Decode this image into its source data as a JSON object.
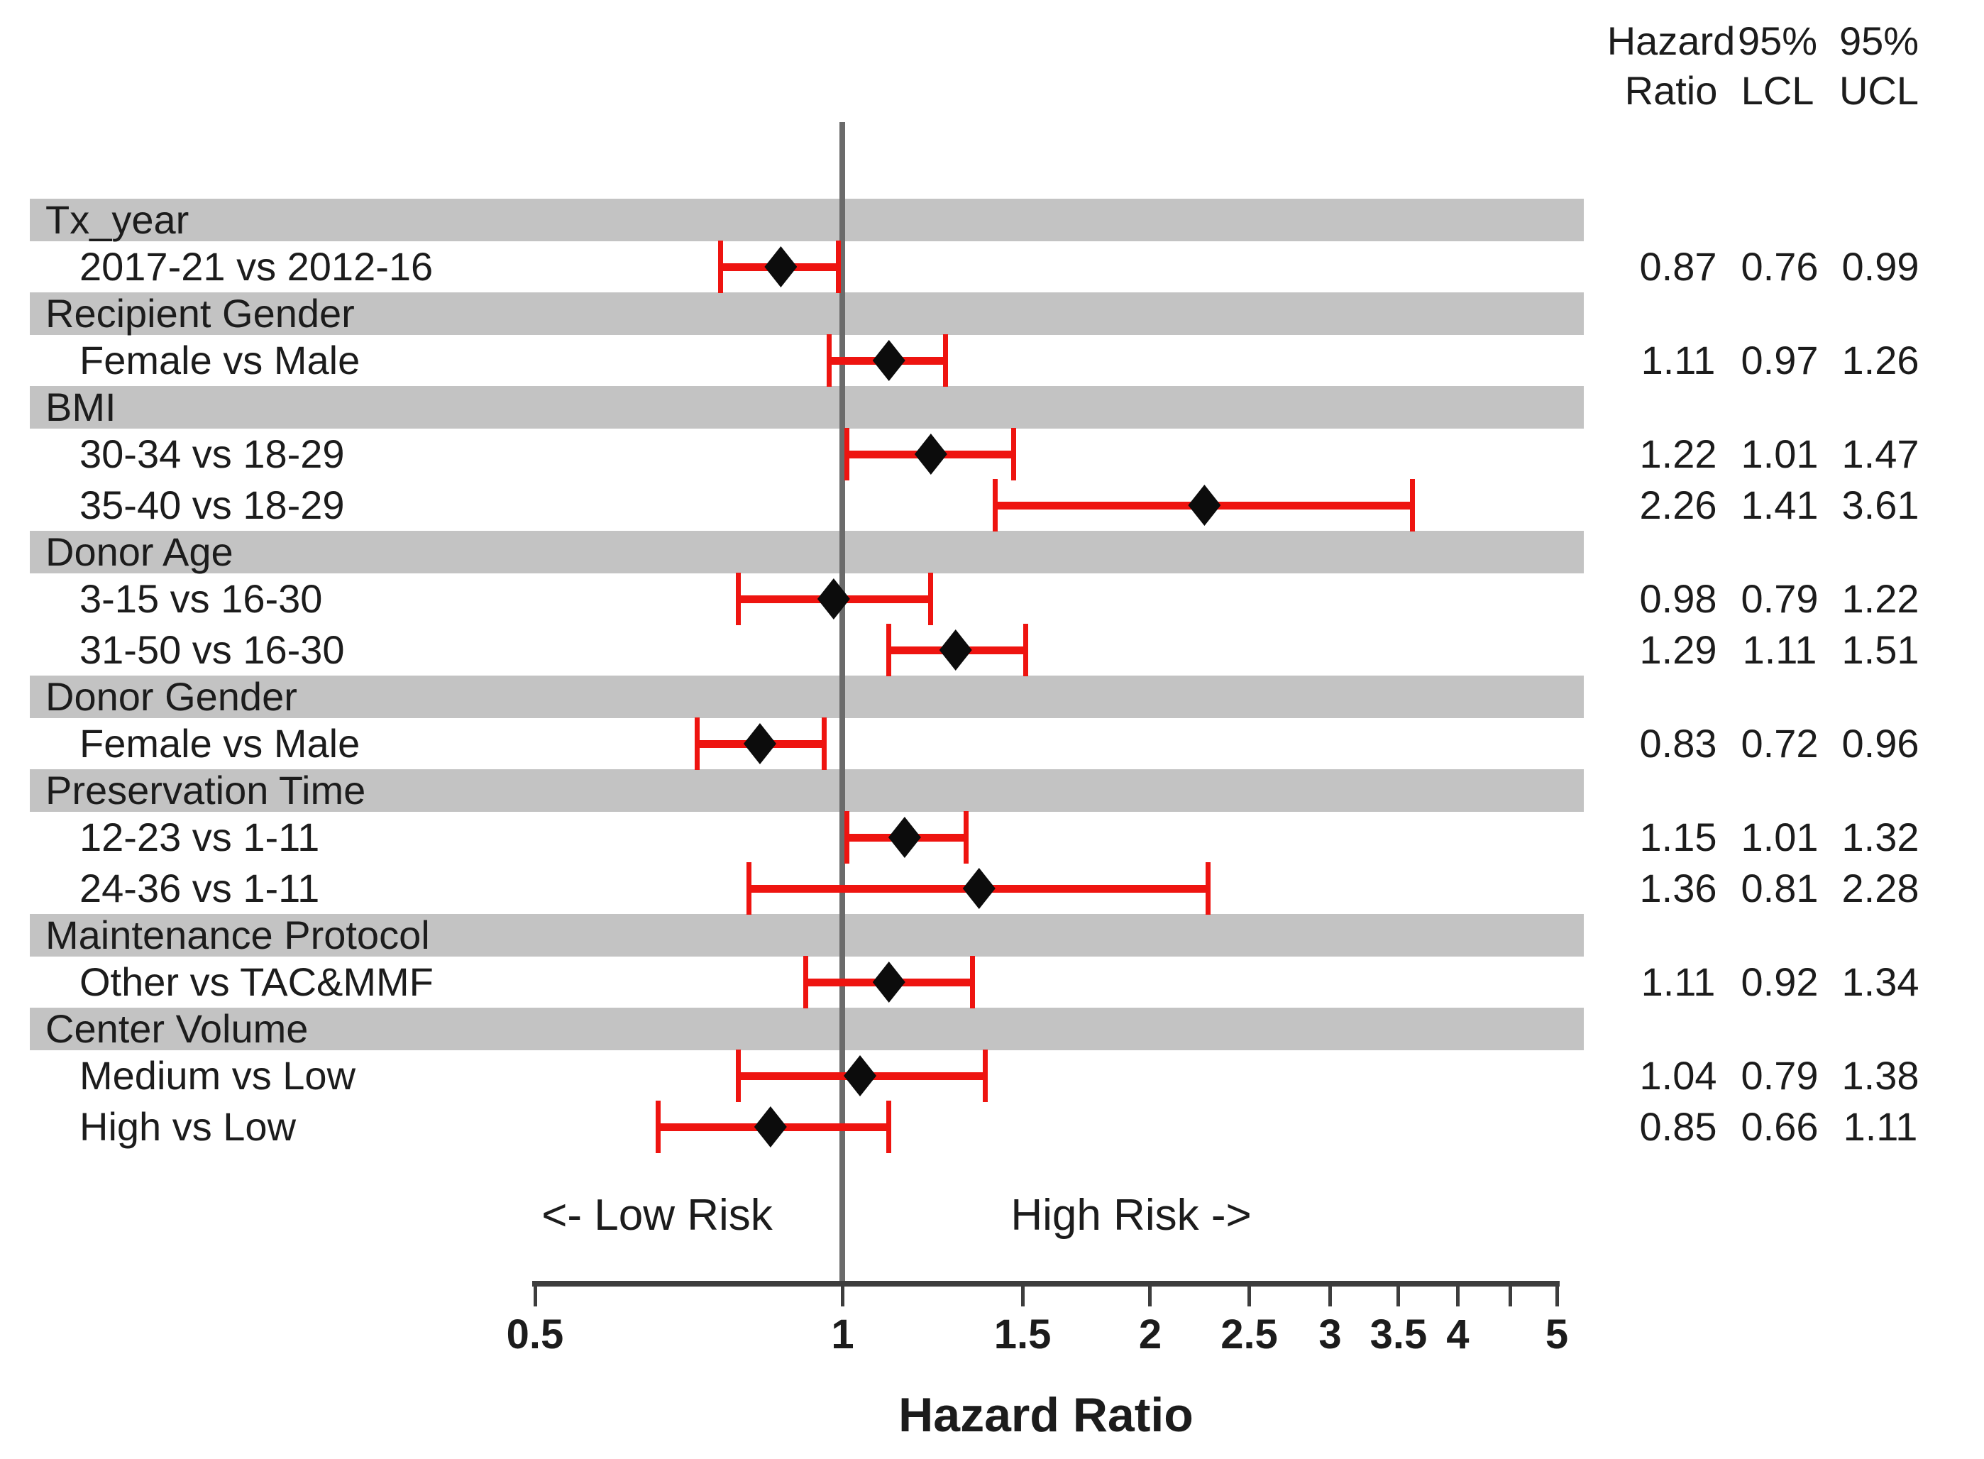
{
  "figure": {
    "value_columns_header": {
      "col1": {
        "line1": "Hazard",
        "line2": "Ratio"
      },
      "col2": {
        "line1": "95%",
        "line2": "LCL"
      },
      "col3": {
        "line1": "95%",
        "line2": "UCL"
      }
    },
    "annotations": {
      "low_risk": "<- Low Risk",
      "high_risk": "High Risk ->"
    },
    "xlabel": "Hazard Ratio"
  },
  "colors": {
    "category_band": "#c3c3c3",
    "error_bar": "#ee1410",
    "marker": "#0c0c0c",
    "reference_line": "#6b6b6b",
    "axis": "#3d3d3d",
    "text": "#1c1c1c"
  },
  "chart_data": {
    "type": "forest",
    "title": "",
    "xlabel": "Hazard Ratio",
    "ylabel": "",
    "x_scale": "log",
    "xlim": [
      0.5,
      5
    ],
    "reference_line": 1,
    "grid": false,
    "legend": "none",
    "columns": [
      "Hazard Ratio",
      "95% LCL",
      "95% UCL"
    ],
    "x_ticks": [
      {
        "value": 0.5,
        "label": "0.5"
      },
      {
        "value": 1,
        "label": "1"
      },
      {
        "value": 1.5,
        "label": "1.5"
      },
      {
        "value": 2,
        "label": "2"
      },
      {
        "value": 2.5,
        "label": "2.5"
      },
      {
        "value": 3,
        "label": "3"
      },
      {
        "value": 3.5,
        "label": "3.5"
      },
      {
        "value": 4,
        "label": "4"
      },
      {
        "value": 4.5,
        "label": ""
      },
      {
        "value": 5,
        "label": "5"
      }
    ],
    "rows": [
      {
        "type": "category",
        "label": "Tx_year"
      },
      {
        "type": "item",
        "label": "2017-21 vs 2012-16",
        "hr": 0.87,
        "lcl": 0.76,
        "ucl": 0.99
      },
      {
        "type": "category",
        "label": "Recipient Gender"
      },
      {
        "type": "item",
        "label": "Female vs Male",
        "hr": 1.11,
        "lcl": 0.97,
        "ucl": 1.26
      },
      {
        "type": "category",
        "label": "BMI"
      },
      {
        "type": "item",
        "label": "30-34 vs 18-29",
        "hr": 1.22,
        "lcl": 1.01,
        "ucl": 1.47
      },
      {
        "type": "item",
        "label": "35-40 vs 18-29",
        "hr": 2.26,
        "lcl": 1.41,
        "ucl": 3.61
      },
      {
        "type": "category",
        "label": "Donor Age"
      },
      {
        "type": "item",
        "label": "3-15 vs 16-30",
        "hr": 0.98,
        "lcl": 0.79,
        "ucl": 1.22
      },
      {
        "type": "item",
        "label": "31-50 vs 16-30",
        "hr": 1.29,
        "lcl": 1.11,
        "ucl": 1.51
      },
      {
        "type": "category",
        "label": "Donor Gender"
      },
      {
        "type": "item",
        "label": "Female vs Male",
        "hr": 0.83,
        "lcl": 0.72,
        "ucl": 0.96
      },
      {
        "type": "category",
        "label": "Preservation Time"
      },
      {
        "type": "item",
        "label": "12-23 vs 1-11",
        "hr": 1.15,
        "lcl": 1.01,
        "ucl": 1.32
      },
      {
        "type": "item",
        "label": "24-36 vs 1-11",
        "hr": 1.36,
        "lcl": 0.81,
        "ucl": 2.28
      },
      {
        "type": "category",
        "label": "Maintenance Protocol"
      },
      {
        "type": "item",
        "label": "Other vs TAC&MMF",
        "hr": 1.11,
        "lcl": 0.92,
        "ucl": 1.34
      },
      {
        "type": "category",
        "label": "Center Volume"
      },
      {
        "type": "item",
        "label": "Medium vs Low",
        "hr": 1.04,
        "lcl": 0.79,
        "ucl": 1.38
      },
      {
        "type": "item",
        "label": "High vs Low",
        "hr": 0.85,
        "lcl": 0.66,
        "ucl": 1.11
      }
    ]
  }
}
